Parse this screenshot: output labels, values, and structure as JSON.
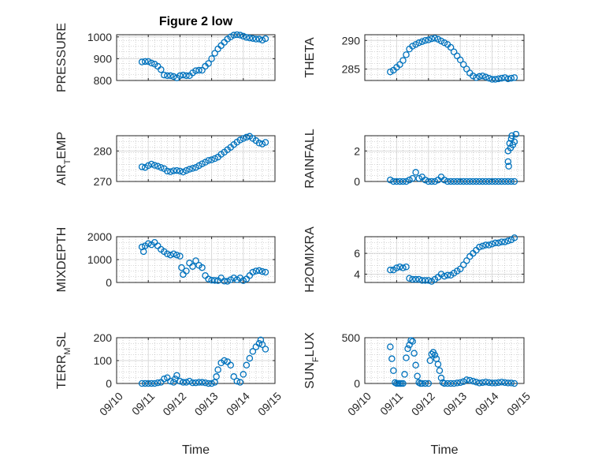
{
  "colors": {
    "marker": "#0072BD",
    "axis": "#262626",
    "grid": "#d9d9d9",
    "minor_grid": "#b0b0b0"
  },
  "chart_data": [
    {
      "type": "scatter",
      "title": "Figure 2 low",
      "ylabel": "PRESSURE",
      "xlabel": "",
      "ylim": [
        800,
        1010
      ],
      "yticks": [
        "800",
        "900",
        "1000"
      ],
      "grid": true,
      "show_xticks": false,
      "series": [
        {
          "x": [
            10.8,
            10.9,
            11.0,
            11.1,
            11.2,
            11.3,
            11.4,
            11.5,
            11.6,
            11.7,
            11.8,
            11.9,
            12.0,
            12.1,
            12.2,
            12.3,
            12.4,
            12.5,
            12.6,
            12.7,
            12.8,
            12.9,
            13.0,
            13.1,
            13.2,
            13.3,
            13.4,
            13.5,
            13.6,
            13.7,
            13.8,
            13.9,
            14.0,
            14.1,
            14.2,
            14.3,
            14.4,
            14.5,
            14.6,
            14.7
          ],
          "y": [
            885,
            887,
            887,
            880,
            875,
            865,
            850,
            825,
            822,
            822,
            818,
            812,
            822,
            825,
            822,
            822,
            835,
            845,
            847,
            847,
            865,
            878,
            900,
            925,
            945,
            960,
            975,
            990,
            1000,
            1008,
            1010,
            1008,
            1003,
            998,
            995,
            993,
            990,
            990,
            985,
            992
          ]
        }
      ]
    },
    {
      "type": "scatter",
      "title": "",
      "ylabel": "THETA",
      "xlabel": "",
      "ylim": [
        283,
        291
      ],
      "yticks": [
        "285",
        "290"
      ],
      "grid": true,
      "show_xticks": false,
      "series": [
        {
          "x": [
            10.8,
            10.9,
            11.0,
            11.1,
            11.2,
            11.3,
            11.4,
            11.5,
            11.6,
            11.7,
            11.8,
            11.9,
            12.0,
            12.1,
            12.2,
            12.3,
            12.4,
            12.5,
            12.6,
            12.7,
            12.8,
            12.9,
            13.0,
            13.1,
            13.2,
            13.3,
            13.4,
            13.5,
            13.6,
            13.7,
            13.8,
            13.9,
            14.0,
            14.1,
            14.2,
            14.3,
            14.4,
            14.5,
            14.6,
            14.7
          ],
          "y": [
            284.5,
            284.8,
            285.3,
            285.8,
            286.5,
            287.5,
            288.5,
            289.0,
            289.3,
            289.6,
            289.8,
            290.0,
            290.1,
            290.3,
            290.4,
            290.2,
            289.9,
            289.6,
            289.3,
            288.8,
            288.0,
            287.3,
            286.6,
            285.8,
            285.0,
            284.3,
            283.8,
            283.5,
            283.7,
            283.8,
            283.6,
            283.4,
            283.2,
            283.2,
            283.3,
            283.4,
            283.5,
            283.3,
            283.4,
            283.5
          ]
        }
      ]
    },
    {
      "type": "scatter",
      "title": "",
      "ylabel": "AIR_TEMP",
      "xlabel": "",
      "ylim": [
        270,
        285
      ],
      "yticks": [
        "270",
        "280"
      ],
      "grid": true,
      "show_xticks": false,
      "series": [
        {
          "x": [
            10.8,
            10.9,
            11.0,
            11.1,
            11.2,
            11.3,
            11.4,
            11.5,
            11.6,
            11.7,
            11.8,
            11.9,
            12.0,
            12.1,
            12.2,
            12.3,
            12.4,
            12.5,
            12.6,
            12.7,
            12.8,
            12.9,
            13.0,
            13.1,
            13.2,
            13.3,
            13.4,
            13.5,
            13.6,
            13.7,
            13.8,
            13.9,
            14.0,
            14.1,
            14.2,
            14.3,
            14.4,
            14.5,
            14.6,
            14.7
          ],
          "y": [
            274.8,
            274.6,
            275.2,
            275.7,
            275.3,
            275.0,
            274.6,
            274.2,
            273.4,
            273.2,
            273.5,
            273.6,
            273.4,
            273.1,
            273.6,
            274.0,
            274.3,
            274.6,
            275.2,
            275.8,
            276.3,
            276.9,
            277.1,
            277.5,
            278.0,
            278.9,
            279.6,
            280.4,
            281.2,
            282.1,
            282.9,
            283.6,
            284.1,
            284.5,
            284.8,
            284.1,
            283.4,
            282.6,
            282.3,
            282.8
          ]
        }
      ]
    },
    {
      "type": "scatter",
      "title": "",
      "ylabel": "RAINFALL",
      "xlabel": "",
      "ylim": [
        0,
        3.0
      ],
      "yticks": [
        "0",
        "2"
      ],
      "grid": true,
      "show_xticks": false,
      "series": [
        {
          "x": [
            10.8,
            10.9,
            11.0,
            11.1,
            11.2,
            11.3,
            11.4,
            11.5,
            11.6,
            11.7,
            11.8,
            11.9,
            12.0,
            12.1,
            12.2,
            12.3,
            12.4,
            12.5,
            12.6,
            12.7,
            12.8,
            12.9,
            13.0,
            13.1,
            13.2,
            13.3,
            13.4,
            13.5,
            13.6,
            13.7,
            13.8,
            13.9,
            14.0,
            14.1,
            14.2,
            14.3,
            14.4,
            14.5,
            14.6,
            14.7,
            14.5,
            14.55,
            14.6,
            14.62,
            14.65,
            14.7,
            14.75,
            14.5,
            14.52,
            14.58
          ],
          "y": [
            0.1,
            0,
            0,
            0,
            0,
            0,
            0.1,
            0.2,
            0.6,
            0.2,
            0.3,
            0.1,
            0,
            0,
            0,
            0.1,
            0.3,
            0.1,
            0,
            0,
            0,
            0,
            0,
            0,
            0,
            0,
            0,
            0,
            0,
            0,
            0,
            0,
            0,
            0,
            0,
            0,
            0,
            0,
            0,
            0,
            2.0,
            2.5,
            2.8,
            3.0,
            2.4,
            2.6,
            3.1,
            1.3,
            1.0,
            2.2
          ]
        }
      ]
    },
    {
      "type": "scatter",
      "title": "",
      "ylabel": "MIXDEPTH",
      "xlabel": "",
      "ylim": [
        0,
        2000
      ],
      "yticks": [
        "0",
        "1000",
        "2000"
      ],
      "grid": true,
      "show_xticks": false,
      "series": [
        {
          "x": [
            10.8,
            10.85,
            10.9,
            11.0,
            11.1,
            11.2,
            11.3,
            11.4,
            11.5,
            11.6,
            11.7,
            11.8,
            11.9,
            12.0,
            12.05,
            12.1,
            12.2,
            12.3,
            12.4,
            12.5,
            12.6,
            12.7,
            12.8,
            12.9,
            13.0,
            13.1,
            13.2,
            13.3,
            13.4,
            13.5,
            13.6,
            13.7,
            13.8,
            13.9,
            14.0,
            14.1,
            14.2,
            14.3,
            14.4,
            14.5,
            14.6,
            14.7
          ],
          "y": [
            1550,
            1350,
            1600,
            1700,
            1650,
            1750,
            1600,
            1450,
            1350,
            1250,
            1200,
            1250,
            1200,
            1150,
            650,
            350,
            500,
            850,
            700,
            950,
            750,
            650,
            300,
            150,
            100,
            90,
            80,
            200,
            60,
            50,
            120,
            200,
            120,
            200,
            80,
            150,
            300,
            450,
            500,
            520,
            480,
            450
          ]
        }
      ]
    },
    {
      "type": "scatter",
      "title": "",
      "ylabel": "H2OMIXRA",
      "xlabel": "",
      "ylim": [
        3.2,
        7.6
      ],
      "yticks": [
        "4",
        "6"
      ],
      "grid": true,
      "show_xticks": false,
      "series": [
        {
          "x": [
            10.8,
            10.9,
            11.0,
            11.1,
            11.2,
            11.3,
            11.4,
            11.5,
            11.6,
            11.7,
            11.8,
            11.9,
            12.0,
            12.1,
            12.2,
            12.3,
            12.4,
            12.5,
            12.6,
            12.7,
            12.8,
            12.9,
            13.0,
            13.1,
            13.2,
            13.3,
            13.4,
            13.5,
            13.6,
            13.7,
            13.8,
            13.9,
            14.0,
            14.1,
            14.2,
            14.3,
            14.4,
            14.5,
            14.6,
            14.7
          ],
          "y": [
            4.4,
            4.4,
            4.6,
            4.7,
            4.6,
            4.7,
            3.6,
            3.5,
            3.5,
            3.5,
            3.4,
            3.4,
            3.4,
            3.3,
            3.5,
            3.7,
            4.0,
            3.8,
            3.9,
            3.9,
            4.1,
            4.3,
            4.5,
            4.9,
            5.3,
            5.7,
            6.0,
            6.3,
            6.6,
            6.7,
            6.8,
            6.8,
            6.9,
            7.0,
            7.0,
            7.1,
            7.1,
            7.2,
            7.3,
            7.5
          ]
        }
      ]
    },
    {
      "type": "scatter",
      "title": "",
      "ylabel": "TERR_MSL",
      "xlabel": "Time",
      "ylim": [
        0,
        200
      ],
      "yticks": [
        "0",
        "100",
        "200"
      ],
      "grid": true,
      "show_xticks": true,
      "xticks": [
        "09/10",
        "09/11",
        "09/12",
        "09/13",
        "09/14",
        "09/15"
      ],
      "series": [
        {
          "x": [
            10.8,
            10.9,
            11.0,
            11.1,
            11.2,
            11.3,
            11.4,
            11.5,
            11.6,
            11.7,
            11.8,
            11.85,
            11.9,
            12.0,
            12.1,
            12.2,
            12.3,
            12.4,
            12.5,
            12.6,
            12.7,
            12.8,
            12.9,
            13.0,
            13.1,
            13.15,
            13.2,
            13.3,
            13.4,
            13.5,
            13.6,
            13.7,
            13.8,
            13.9,
            14.0,
            14.1,
            14.2,
            14.3,
            14.4,
            14.5,
            14.55,
            14.6,
            14.7
          ],
          "y": [
            0,
            0,
            0,
            0,
            0,
            3,
            5,
            20,
            25,
            10,
            5,
            20,
            35,
            10,
            5,
            5,
            10,
            3,
            3,
            5,
            5,
            3,
            0,
            0,
            5,
            30,
            60,
            90,
            100,
            95,
            80,
            30,
            10,
            5,
            40,
            80,
            110,
            140,
            160,
            175,
            190,
            170,
            150
          ]
        }
      ]
    },
    {
      "type": "scatter",
      "title": "",
      "ylabel": "SUN_FLUX",
      "xlabel": "Time",
      "ylim": [
        0,
        500
      ],
      "yticks": [
        "0",
        "500"
      ],
      "grid": true,
      "show_xticks": true,
      "xticks": [
        "09/10",
        "09/11",
        "09/12",
        "09/13",
        "09/14",
        "09/15"
      ],
      "series": [
        {
          "x": [
            10.8,
            10.85,
            10.9,
            10.95,
            11.0,
            11.05,
            11.1,
            11.15,
            11.2,
            11.25,
            11.3,
            11.35,
            11.4,
            11.45,
            11.5,
            11.55,
            11.6,
            11.65,
            11.7,
            11.75,
            11.8,
            11.9,
            12.0,
            12.05,
            12.1,
            12.15,
            12.2,
            12.25,
            12.3,
            12.35,
            12.4,
            12.45,
            12.5,
            12.6,
            12.7,
            12.8,
            12.9,
            13.0,
            13.1,
            13.2,
            13.3,
            13.4,
            13.5,
            13.6,
            13.7,
            13.8,
            13.9,
            14.0,
            14.1,
            14.2,
            14.3,
            14.4,
            14.5,
            14.6,
            14.7
          ],
          "y": [
            400,
            270,
            140,
            10,
            0,
            0,
            0,
            0,
            0,
            100,
            280,
            380,
            420,
            470,
            460,
            330,
            200,
            80,
            10,
            0,
            0,
            0,
            0,
            250,
            320,
            340,
            310,
            270,
            210,
            140,
            60,
            10,
            0,
            0,
            0,
            0,
            5,
            10,
            20,
            40,
            35,
            25,
            15,
            5,
            10,
            15,
            10,
            5,
            5,
            10,
            15,
            10,
            5,
            5,
            0
          ]
        }
      ]
    }
  ]
}
